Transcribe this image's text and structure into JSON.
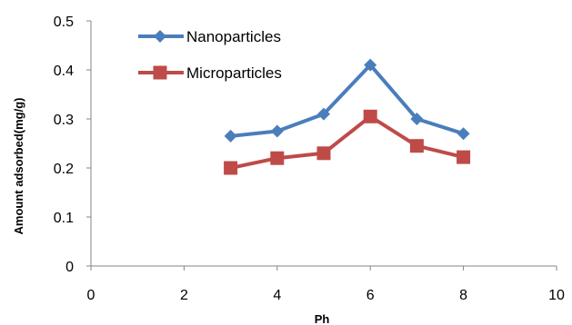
{
  "chart_data": {
    "type": "line",
    "title": "",
    "xlabel": "Ph",
    "ylabel": "Amount adsorbed(mg/g)",
    "xlim": [
      0,
      10
    ],
    "ylim": [
      0,
      0.5
    ],
    "x_ticks": [
      "0",
      "2",
      "4",
      "6",
      "8",
      "10"
    ],
    "y_ticks": [
      "0",
      "0.1",
      "0.2",
      "0.3",
      "0.4",
      "0.5"
    ],
    "grid": false,
    "legend_position": "top-left",
    "series": [
      {
        "name": "Nanoparticles",
        "color": "#4a7ebb",
        "marker": "diamond",
        "x": [
          3,
          4,
          5,
          6,
          7,
          8
        ],
        "y": [
          0.265,
          0.275,
          0.31,
          0.41,
          0.3,
          0.27
        ]
      },
      {
        "name": "Microparticles",
        "color": "#be4b48",
        "marker": "square",
        "x": [
          3,
          4,
          5,
          6,
          7,
          8
        ],
        "y": [
          0.2,
          0.22,
          0.23,
          0.305,
          0.245,
          0.222
        ]
      }
    ]
  }
}
